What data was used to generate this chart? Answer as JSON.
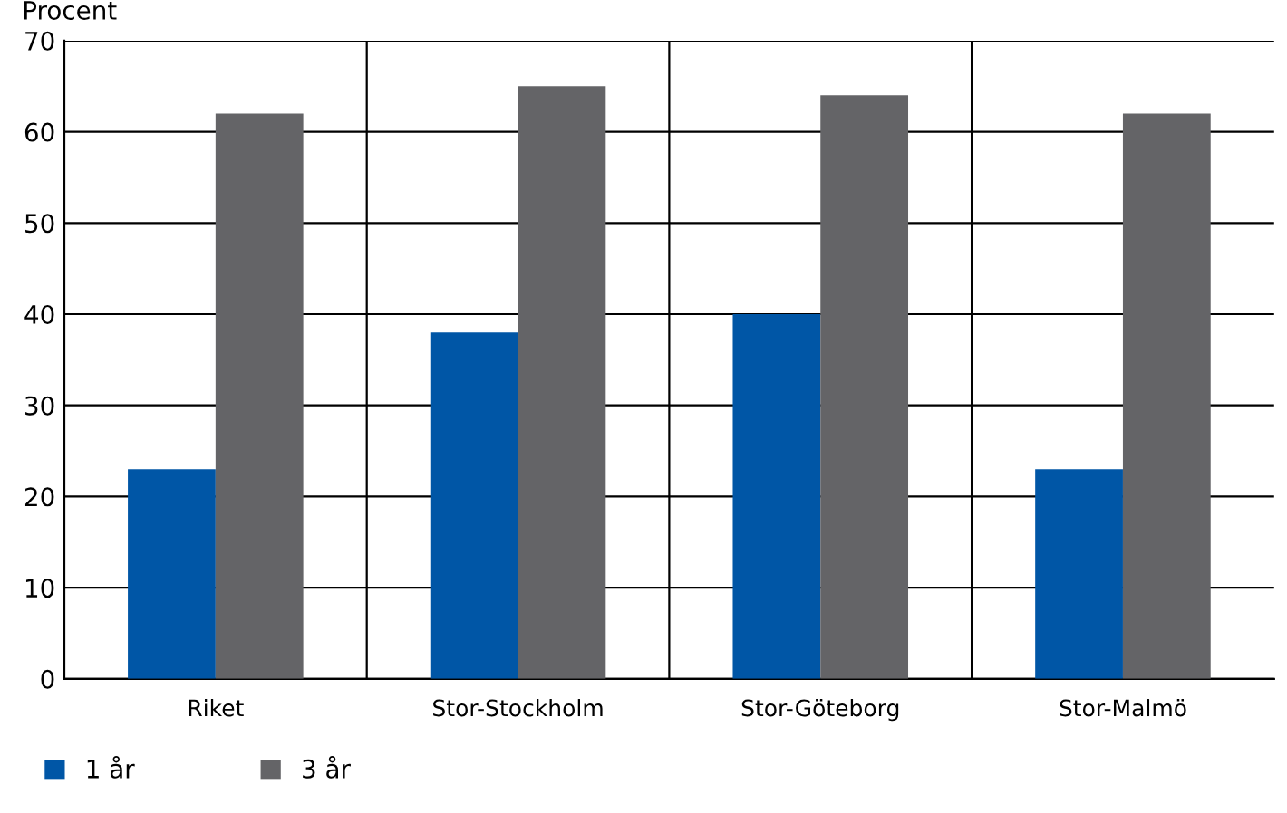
{
  "chart_data": {
    "type": "bar",
    "ylabel": "Procent",
    "categories": [
      "Riket",
      "Stor-Stockholm",
      "Stor-Göteborg",
      "Stor-Malmö"
    ],
    "series": [
      {
        "name": "1 år",
        "color": "#0056a6",
        "values": [
          23,
          38,
          40,
          23
        ]
      },
      {
        "name": "3 år",
        "color": "#646467",
        "values": [
          62,
          65,
          64,
          62
        ]
      }
    ],
    "ylim": [
      0,
      70
    ],
    "yticks": [
      0,
      10,
      20,
      30,
      40,
      50,
      60,
      70
    ],
    "grid": true,
    "legend": "bottom left"
  }
}
